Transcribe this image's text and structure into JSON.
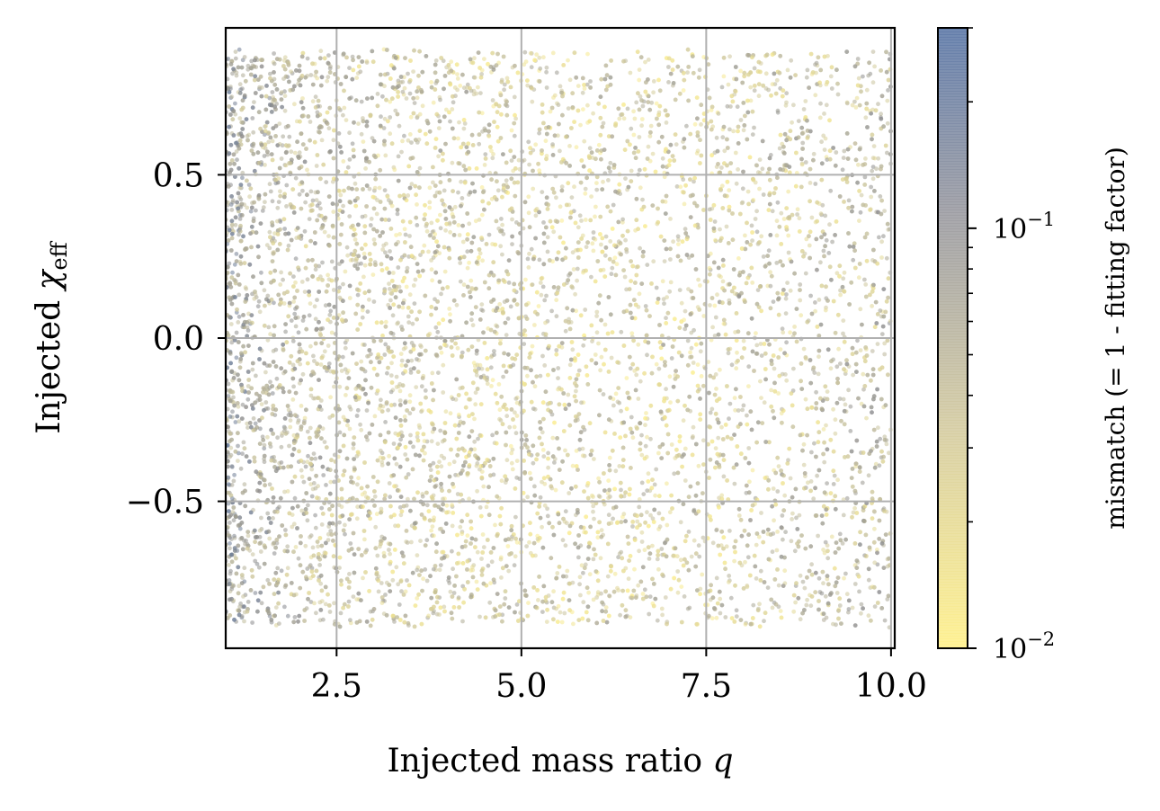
{
  "chart_data": {
    "type": "scatter",
    "xlabel": "Injected mass ratio q",
    "xlabel_prefix": "Injected mass ratio ",
    "xlabel_var": "q",
    "ylabel_prefix": "Injected ",
    "ylabel_var": "χ",
    "ylabel_sub": "eff",
    "xlim": [
      1.0,
      10.05
    ],
    "ylim": [
      -0.95,
      0.95
    ],
    "xticks": [
      2.5,
      5.0,
      7.5,
      10.0
    ],
    "xtick_labels": [
      "2.5",
      "5.0",
      "7.5",
      "10.0"
    ],
    "yticks": [
      0.5,
      0.0,
      -0.5
    ],
    "ytick_labels": [
      "0.5",
      "0.0",
      "−0.5"
    ],
    "grid": true,
    "n_points": 9000,
    "x_range": [
      1.0,
      10.0
    ],
    "y_range": [
      -0.88,
      0.88
    ],
    "colorbar": {
      "label": "mismatch (= 1 - fitting factor)",
      "scale": "log",
      "range": [
        0.01,
        0.3
      ],
      "ticks": [
        {
          "value": 0.01,
          "base": "10",
          "exp": "−2"
        },
        {
          "value": 0.1,
          "base": "10",
          "exp": "−1"
        }
      ],
      "colormap": [
        "#fff08a",
        "#c9c39e",
        "#8c8c8c",
        "#4a6aa0"
      ]
    },
    "trend": "mismatch is higher (grey) at low q and at extreme q near 10; mostly low (yellow) elsewhere"
  }
}
